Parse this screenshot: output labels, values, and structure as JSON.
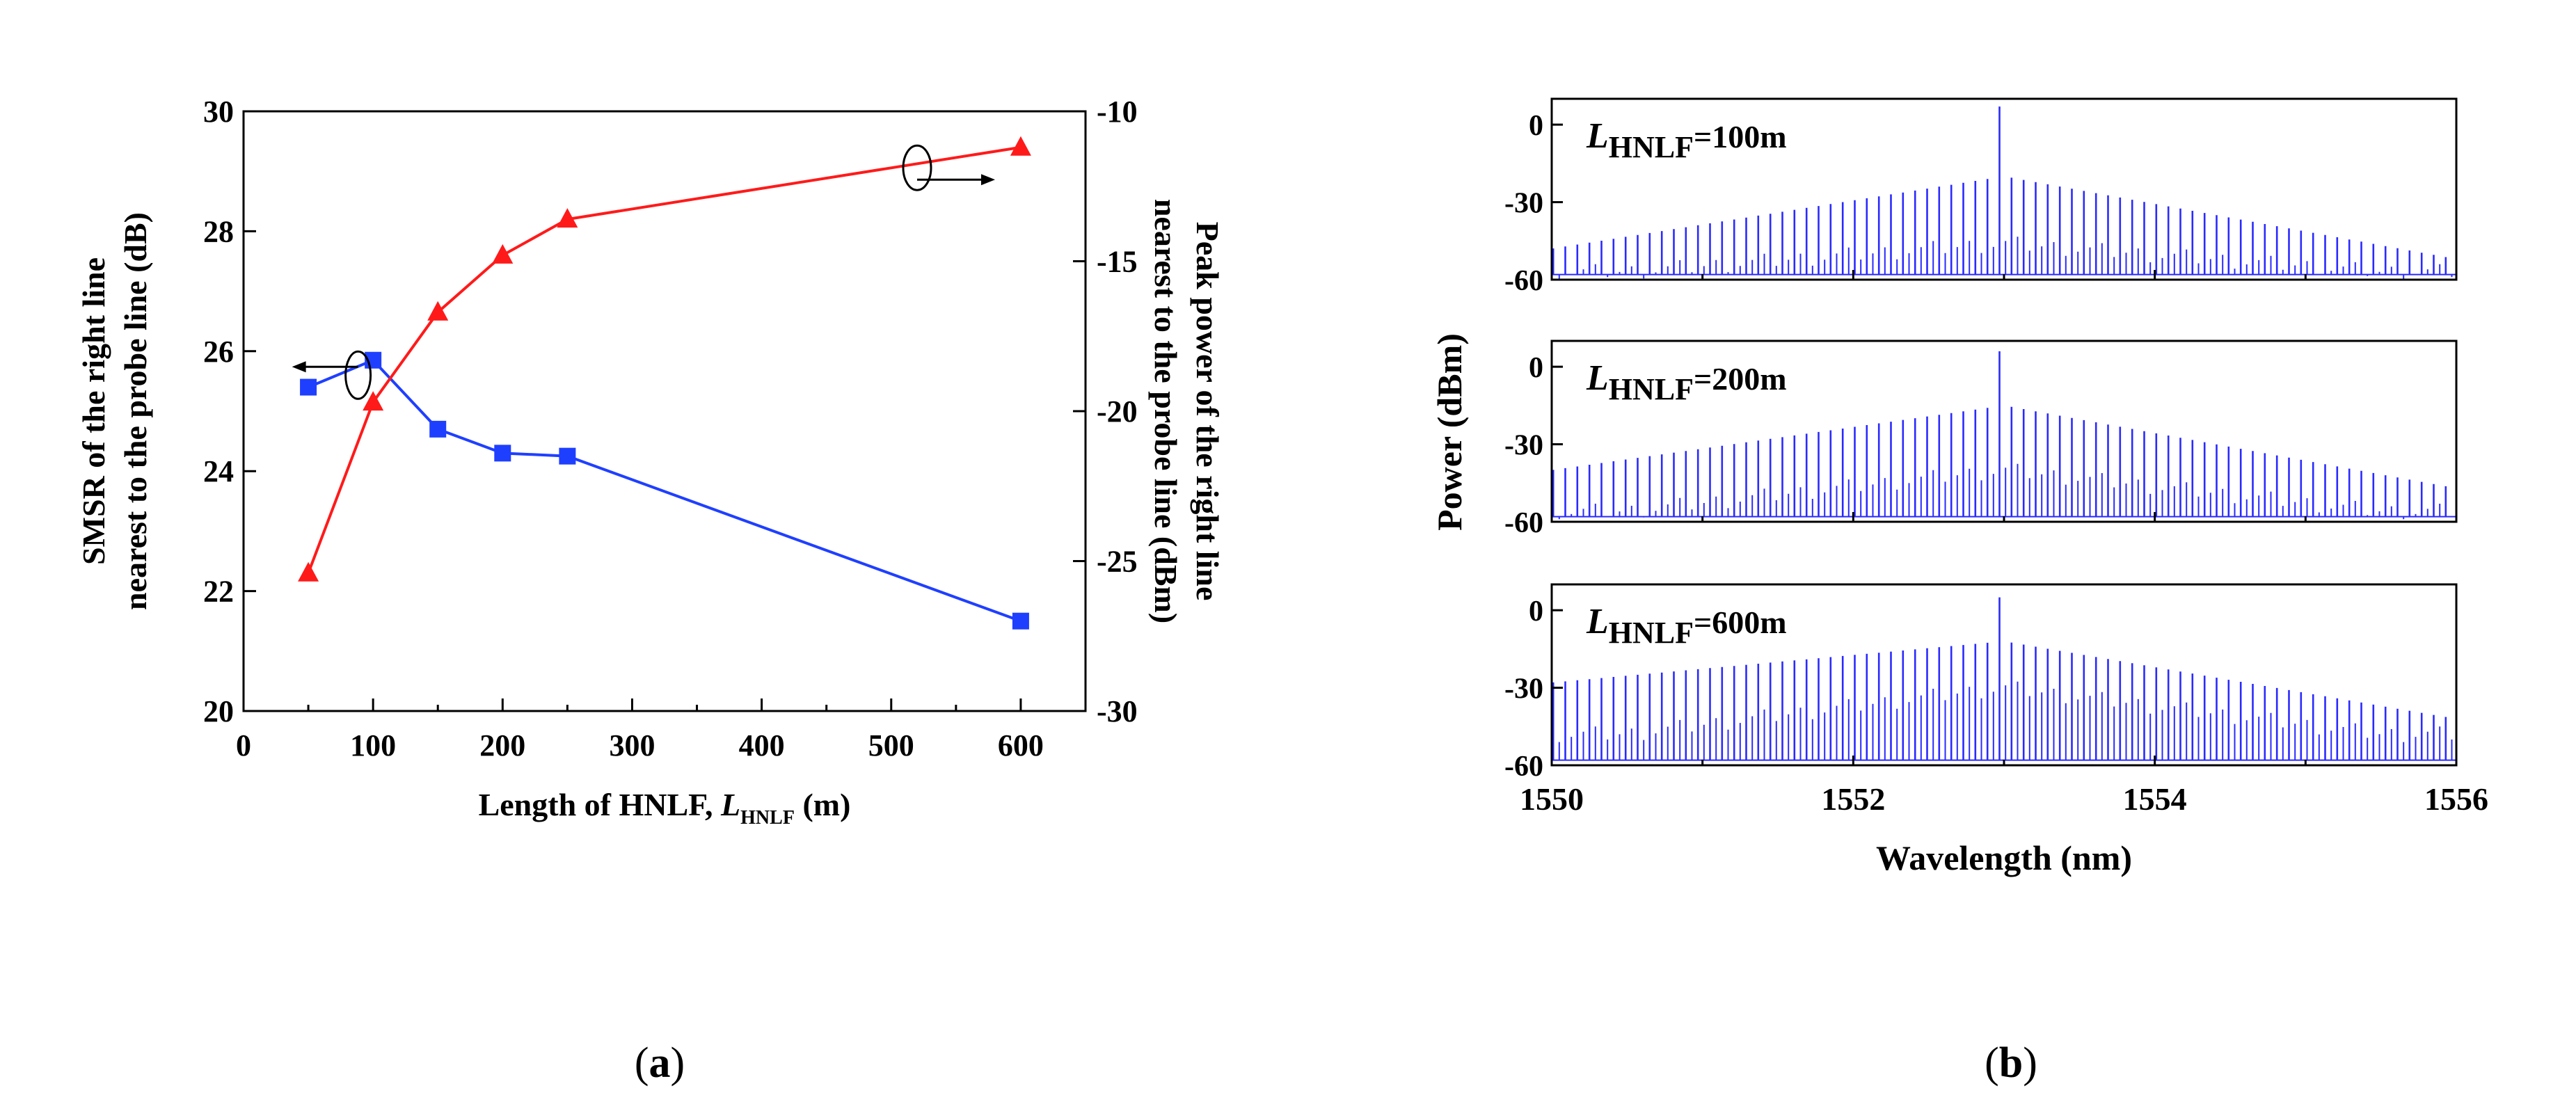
{
  "figure": {
    "panel_a_caption_letter": "a",
    "panel_b_caption_letter": "b",
    "caption_open": "(",
    "caption_close": ")"
  },
  "colors": {
    "smsr_series": "#1f3fff",
    "power_series": "#ff1a1a",
    "spectrum": "#2a2aff",
    "axis": "#000000"
  },
  "chart_data": [
    {
      "id": "a",
      "type": "line",
      "title": "",
      "xlabel_prefix": "Length of HNLF, ",
      "xlabel_symbol": "L",
      "xlabel_subscript": "HNLF",
      "xlabel_unit": " (m)",
      "ylabel_left_line1": "SMSR of the right line",
      "ylabel_left_line2": "nearest to the probe line (dB)",
      "ylabel_right_line1": "Peak power of the right line",
      "ylabel_right_line2": "nearest to the probe line (dBm)",
      "xlim": [
        0,
        650
      ],
      "ylim_left": [
        20,
        30
      ],
      "ylim_right": [
        -30,
        -10
      ],
      "xticks": [
        0,
        100,
        200,
        300,
        400,
        500,
        600
      ],
      "yticks_left": [
        20,
        22,
        24,
        26,
        28,
        30
      ],
      "yticks_right": [
        -30,
        -25,
        -20,
        -15,
        -10
      ],
      "series": [
        {
          "name": "SMSR",
          "axis": "left",
          "marker": "square",
          "x": [
            50,
            100,
            150,
            200,
            250,
            600
          ],
          "values": [
            25.4,
            25.85,
            24.7,
            24.3,
            24.25,
            21.5
          ]
        },
        {
          "name": "Peak power",
          "axis": "right",
          "marker": "triangle",
          "x": [
            50,
            100,
            150,
            200,
            250,
            600
          ],
          "values": [
            -25.4,
            -19.7,
            -16.7,
            -14.8,
            -13.6,
            -11.2
          ]
        }
      ],
      "annotations": [
        {
          "target": "left-axis",
          "at_x": 75,
          "at_y_left": 25.6
        },
        {
          "target": "right-axis",
          "at_x": 520,
          "at_y_left": 29.0
        }
      ]
    },
    {
      "id": "b",
      "type": "line",
      "title": "",
      "xlabel": "Wavelength (nm)",
      "ylabel": "Power (dBm)",
      "xlim": [
        1550,
        1556
      ],
      "ylim": [
        -60,
        10
      ],
      "xticks": [
        1550,
        1552,
        1554,
        1556
      ],
      "yticks": [
        0,
        -30,
        -60
      ],
      "comb_spacing_nm": 0.08,
      "center_nm": 1553.0,
      "panels": [
        {
          "label_symbol": "L",
          "label_subscript": "HNLF",
          "label_value": "=100m",
          "center_peak_dbm": 7,
          "side_peak_dbm": -20,
          "edge_dbm_left": -48,
          "edge_dbm_right": -52,
          "floor_dbm": -58,
          "mix_peak_dbm": -46,
          "mix_edge_dbm": -57
        },
        {
          "label_symbol": "L",
          "label_subscript": "HNLF",
          "label_value": "=200m",
          "center_peak_dbm": 6,
          "side_peak_dbm": -15,
          "edge_dbm_left": -40,
          "edge_dbm_right": -47,
          "floor_dbm": -58,
          "mix_peak_dbm": -40,
          "mix_edge_dbm": -56
        },
        {
          "label_symbol": "L",
          "label_subscript": "HNLF",
          "label_value": "=600m",
          "center_peak_dbm": 5,
          "side_peak_dbm": -12,
          "edge_dbm_left": -28,
          "edge_dbm_right": -42,
          "floor_dbm": -58,
          "mix_peak_dbm": -30,
          "mix_edge_dbm": -48
        }
      ]
    }
  ]
}
